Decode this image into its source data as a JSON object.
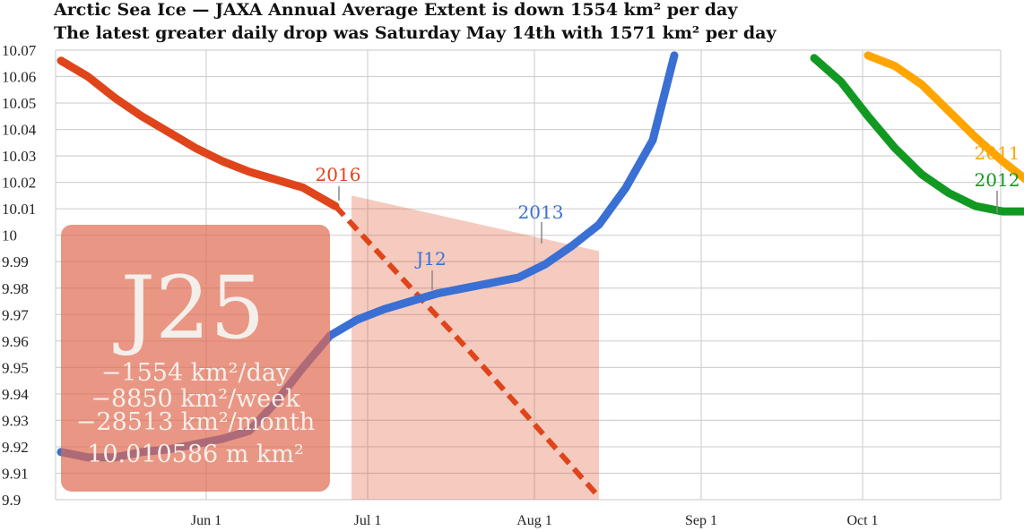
{
  "header": {
    "title_line1": "Arctic Sea Ice — JAXA Annual Average Extent is down 1554 km² per day",
    "title_line2": "The latest greater daily drop was Saturday May 14th with 1571 km² per day"
  },
  "chart_data": {
    "type": "line",
    "title": "Arctic Sea Ice — JAXA Annual Average Extent is down 1554 km² per day",
    "subtitle": "The latest greater daily drop was Saturday May 14th with 1571 km² per day",
    "xlabel": "",
    "ylabel": "",
    "x_ticks": [
      "Jun 1",
      "Jul 1",
      "Aug 1",
      "Sep 1",
      "Oct 1"
    ],
    "y_ticks": [
      "10.07",
      "10.06",
      "10.05",
      "10.04",
      "10.03",
      "10.02",
      "10.01",
      "10",
      "9.99",
      "9.98",
      "9.97",
      "9.96",
      "9.95",
      "9.94",
      "9.93",
      "9.92",
      "9.91",
      "9.9"
    ],
    "ylim": [
      9.9,
      10.07
    ],
    "grid": true,
    "series": [
      {
        "name": "2016",
        "color": "#e0441a",
        "x": [
          "May 5",
          "May 10",
          "May 15",
          "May 20",
          "May 25",
          "May 30",
          "Jun 4",
          "Jun 9",
          "Jun 14",
          "Jun 19",
          "Jun 25"
        ],
        "values": [
          10.066,
          10.06,
          10.052,
          10.045,
          10.039,
          10.033,
          10.028,
          10.024,
          10.021,
          10.018,
          10.011
        ]
      },
      {
        "name": "2016 projection",
        "color": "#e0441a",
        "dashed": true,
        "x": [
          "Jun 25",
          "Jul 20",
          "Aug 13"
        ],
        "values": [
          10.011,
          9.956,
          9.901
        ]
      },
      {
        "name": "2013",
        "color": "#3a6fd4",
        "x": [
          "May 5",
          "May 10",
          "May 15",
          "May 20",
          "May 25",
          "May 30",
          "Jun 4",
          "Jun 9",
          "Jun 14",
          "Jun 19",
          "Jun 24",
          "Jun 29",
          "Jul 4",
          "Jul 9",
          "Jul 14",
          "Jul 19",
          "Jul 24",
          "Jul 29",
          "Aug 3",
          "Aug 8",
          "Aug 13",
          "Aug 18",
          "Aug 23",
          "Aug 27"
        ],
        "values": [
          9.918,
          9.916,
          9.916,
          9.918,
          9.919,
          9.921,
          9.923,
          9.926,
          9.937,
          9.95,
          9.962,
          9.968,
          9.972,
          9.975,
          9.978,
          9.98,
          9.982,
          9.984,
          9.989,
          9.996,
          10.004,
          10.018,
          10.036,
          10.068
        ]
      },
      {
        "name": "2012",
        "color": "#119922",
        "x": [
          "Sep 22",
          "Sep 27",
          "Oct 2",
          "Oct 7",
          "Oct 12",
          "Oct 17",
          "Oct 22",
          "Oct 27",
          "Nov 1"
        ],
        "values": [
          10.067,
          10.058,
          10.045,
          10.033,
          10.023,
          10.016,
          10.011,
          10.009,
          10.009
        ]
      },
      {
        "name": "2011",
        "color": "#ffa500",
        "x": [
          "Oct 2",
          "Oct 7",
          "Oct 12",
          "Oct 17",
          "Oct 22",
          "Oct 27",
          "Nov 1"
        ],
        "values": [
          10.068,
          10.064,
          10.057,
          10.047,
          10.037,
          10.028,
          10.02
        ]
      }
    ],
    "projection_band": {
      "color": "#e0441a",
      "x": [
        "Jun 28",
        "Aug 13"
      ],
      "upper": [
        10.015,
        9.994
      ],
      "lower": [
        9.9,
        9.9
      ]
    },
    "annotations": {
      "label_2016": "2016",
      "label_2013": "2013",
      "label_j12": "J12",
      "label_2011": "2011",
      "label_2012": "2012"
    },
    "info_box": {
      "big": "J25",
      "line1": "−1554 km²/day",
      "line2": "−8850 km²/week",
      "line3": "−28513 km²/month",
      "line4": "10.010586 m km²"
    }
  }
}
